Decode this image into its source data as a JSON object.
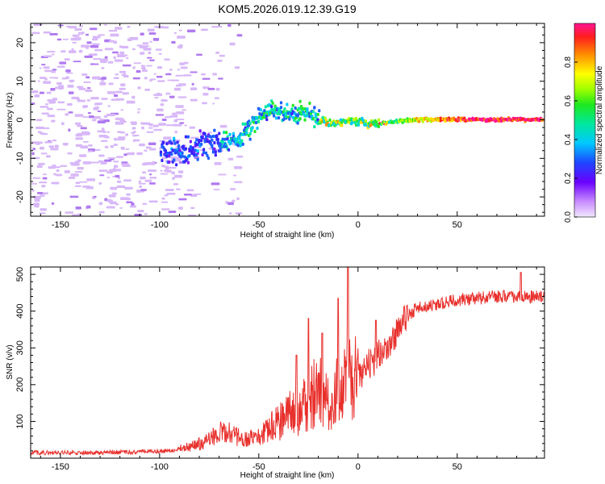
{
  "title": "KOM5.2026.019.12.39.G19",
  "colors": {
    "snr_line": "#e8302c",
    "frame": "#000000",
    "scatter_base": "#c9a6f0"
  },
  "chart_data": [
    {
      "type": "heatmap",
      "name": "spectrogram",
      "xlabel": "Height of straight line (km)",
      "ylabel": "Frequency (Hz)",
      "xlim": [
        -165,
        94
      ],
      "ylim": [
        -25,
        25
      ],
      "xticks": [
        -150,
        -100,
        -50,
        0,
        50
      ],
      "xtick_labels": [
        "-150",
        "-100",
        "-50",
        "0",
        "50"
      ],
      "yticks": [
        -20,
        -10,
        0,
        10,
        20
      ],
      "ytick_labels": [
        "-20",
        "-10",
        "0",
        "10",
        "20"
      ],
      "grid": false,
      "trace_description_hz_vs_km": [
        [
          -95,
          -8
        ],
        [
          -85,
          -8
        ],
        [
          -75,
          -6
        ],
        [
          -68,
          -6
        ],
        [
          -60,
          -5
        ],
        [
          -55,
          -2
        ],
        [
          -50,
          1
        ],
        [
          -45,
          3
        ],
        [
          -38,
          2
        ],
        [
          -32,
          1
        ],
        [
          -26,
          2
        ],
        [
          -20,
          0
        ],
        [
          -14,
          -1
        ],
        [
          -8,
          -1
        ],
        [
          -2,
          0
        ],
        [
          4,
          -1
        ],
        [
          10,
          -1
        ],
        [
          18,
          -0.5
        ],
        [
          30,
          0
        ],
        [
          45,
          0
        ],
        [
          94,
          0
        ]
      ],
      "colorbar": {
        "label": "Normalized spectral amplitude",
        "range": [
          0,
          1
        ],
        "ticks": [
          0.0,
          0.2,
          0.4,
          0.6,
          0.8
        ],
        "tick_labels": [
          "0.0",
          "0.2",
          "0.4",
          "0.6",
          "0.8"
        ]
      }
    },
    {
      "type": "line",
      "name": "snr",
      "xlabel": "Height of straight line (km)",
      "ylabel": "SNR (v/v)",
      "xlim": [
        -165,
        94
      ],
      "ylim": [
        0,
        520
      ],
      "xticks": [
        -150,
        -100,
        -50,
        0,
        50
      ],
      "xtick_labels": [
        "-150",
        "-100",
        "-50",
        "0",
        "50"
      ],
      "yticks": [
        100,
        200,
        300,
        400,
        500
      ],
      "ytick_labels": [
        "100",
        "200",
        "300",
        "400",
        "500"
      ],
      "grid": false,
      "series": [
        {
          "name": "SNR",
          "x": [
            -165,
            -150,
            -130,
            -110,
            -95,
            -85,
            -75,
            -68,
            -62,
            -55,
            -48,
            -42,
            -36,
            -30,
            -25,
            -20,
            -15,
            -10,
            -5,
            0,
            5,
            10,
            15,
            20,
            25,
            30,
            40,
            50,
            60,
            70,
            80,
            94
          ],
          "y": [
            15,
            15,
            15,
            18,
            20,
            30,
            50,
            75,
            60,
            55,
            65,
            95,
            120,
            130,
            160,
            185,
            165,
            180,
            215,
            215,
            250,
            275,
            310,
            350,
            385,
            410,
            420,
            430,
            435,
            440,
            440,
            440
          ],
          "spikes": [
            [
              -31,
              280
            ],
            [
              -25,
              380
            ],
            [
              -18,
              340
            ],
            [
              -10,
              435
            ],
            [
              -5,
              520
            ],
            [
              9,
              375
            ],
            [
              82,
              505
            ]
          ]
        }
      ]
    }
  ]
}
